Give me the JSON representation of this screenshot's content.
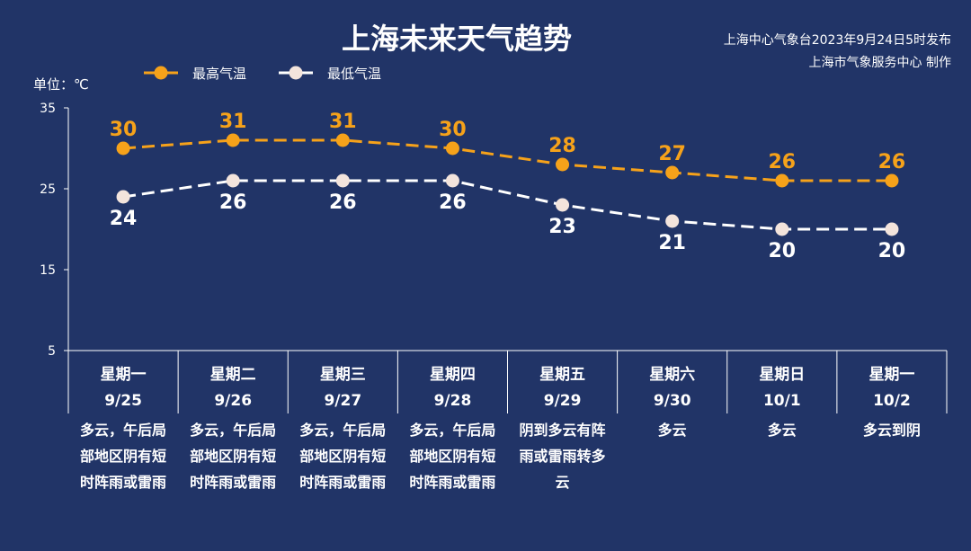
{
  "header": {
    "title": "上海未来天气趋势",
    "source_line1": "上海中心气象台2023年9月24日5时发布",
    "source_line2": "上海市气象服务中心 制作"
  },
  "legend": {
    "high": "最高气温",
    "low": "最低气温"
  },
  "unit": "单位：℃",
  "colors": {
    "background": "#213467",
    "high": "#f6a21a",
    "low": "#ffffff",
    "low_marker": "#f3e4dc"
  },
  "chart_data": {
    "type": "line",
    "categories": [
      "9/25",
      "9/26",
      "9/27",
      "9/28",
      "9/29",
      "9/30",
      "10/1",
      "10/2"
    ],
    "weekdays": [
      "星期一",
      "星期二",
      "星期三",
      "星期四",
      "星期五",
      "星期六",
      "星期日",
      "星期一"
    ],
    "weather": [
      [
        "多云，午后局",
        "部地区阴有短",
        "时阵雨或雷雨"
      ],
      [
        "多云，午后局",
        "部地区阴有短",
        "时阵雨或雷雨"
      ],
      [
        "多云，午后局",
        "部地区阴有短",
        "时阵雨或雷雨"
      ],
      [
        "多云，午后局",
        "部地区阴有短",
        "时阵雨或雷雨"
      ],
      [
        "阴到多云有阵",
        "雨或雷雨转多",
        "云"
      ],
      [
        "多云"
      ],
      [
        "多云"
      ],
      [
        "多云到阴"
      ]
    ],
    "series": [
      {
        "name": "最高气温",
        "values": [
          30,
          31,
          31,
          30,
          28,
          27,
          26,
          26
        ]
      },
      {
        "name": "最低气温",
        "values": [
          24,
          26,
          26,
          26,
          23,
          21,
          20,
          20
        ]
      }
    ],
    "ylim": [
      5,
      35
    ],
    "yticks": [
      "35",
      "25",
      "15",
      "5"
    ],
    "grid": false,
    "legend_position": "top-left"
  }
}
